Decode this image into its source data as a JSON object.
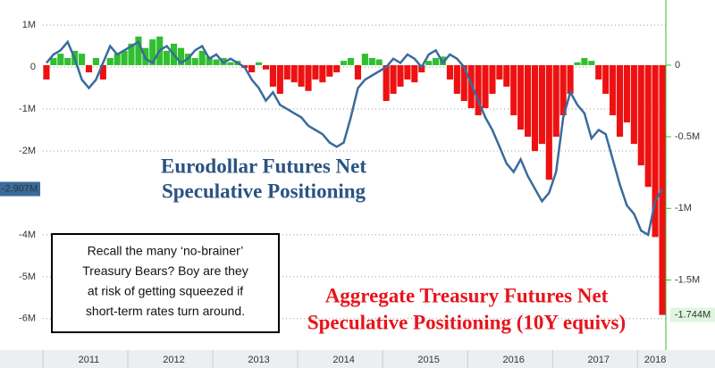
{
  "chart_data": {
    "type": "bar-line",
    "categories": [
      null,
      null,
      null,
      null,
      null,
      null,
      "2011",
      null,
      null,
      null,
      null,
      null,
      null,
      null,
      null,
      null,
      null,
      null,
      "2012",
      null,
      null,
      null,
      null,
      null,
      null,
      null,
      null,
      null,
      null,
      null,
      "2013",
      null,
      null,
      null,
      null,
      null,
      null,
      null,
      null,
      null,
      null,
      null,
      "2014",
      null,
      null,
      null,
      null,
      null,
      null,
      null,
      null,
      null,
      null,
      null,
      "2015",
      null,
      null,
      null,
      null,
      null,
      null,
      null,
      null,
      null,
      null,
      null,
      "2016",
      null,
      null,
      null,
      null,
      null,
      null,
      null,
      null,
      null,
      null,
      null,
      "2017",
      null,
      null,
      null,
      null,
      null,
      null,
      null,
      "2018",
      null
    ],
    "series": [
      {
        "name": "Aggregate Treasury Futures Net Speculative Positioning (10Y equivs)",
        "axis": "y2",
        "positive_color": "#2fbf2f",
        "negative_color": "#ee1111",
        "end_label": "-1.744M",
        "values": [
          -0.1,
          0.05,
          0.08,
          0.05,
          0.1,
          0.08,
          -0.05,
          0.05,
          -0.1,
          0.05,
          0.08,
          0.1,
          0.15,
          0.2,
          0.12,
          0.18,
          0.2,
          0.1,
          0.15,
          0.12,
          0.08,
          0.05,
          0.1,
          0.06,
          0.04,
          0.05,
          0.02,
          0.03,
          -0.02,
          -0.05,
          0.02,
          -0.03,
          -0.15,
          -0.2,
          -0.1,
          -0.12,
          -0.15,
          -0.18,
          -0.1,
          -0.12,
          -0.08,
          -0.05,
          0.03,
          0.05,
          -0.1,
          0.08,
          0.05,
          0.04,
          -0.25,
          -0.2,
          -0.15,
          -0.1,
          -0.12,
          -0.05,
          0.03,
          0.05,
          0.06,
          -0.1,
          -0.2,
          -0.25,
          -0.3,
          -0.35,
          -0.3,
          -0.2,
          -0.1,
          -0.15,
          -0.35,
          -0.45,
          -0.5,
          -0.6,
          -0.55,
          -0.8,
          -0.5,
          -0.35,
          -0.2,
          0.02,
          0.05,
          0.03,
          -0.1,
          -0.2,
          -0.35,
          -0.5,
          -0.4,
          -0.55,
          -0.7,
          -0.85,
          -1.2,
          -1.744
        ]
      },
      {
        "name": "Eurodollar Futures Net Speculative Positioning",
        "color": "#3a6b9c",
        "end_label": "-2.907M",
        "values": [
          0.1,
          0.3,
          0.4,
          0.6,
          0.2,
          -0.3,
          -0.5,
          -0.3,
          0.1,
          0.5,
          0.3,
          0.4,
          0.5,
          0.6,
          0.2,
          0.1,
          0.4,
          0.5,
          0.3,
          0.1,
          0.2,
          0.4,
          0.5,
          0.2,
          0.3,
          0.1,
          0.2,
          0.1,
          0.0,
          -0.3,
          -0.5,
          -0.8,
          -0.6,
          -0.9,
          -1.0,
          -1.1,
          -1.2,
          -1.4,
          -1.5,
          -1.6,
          -1.8,
          -1.9,
          -1.8,
          -1.2,
          -0.5,
          -0.3,
          -0.2,
          -0.1,
          0.0,
          0.2,
          0.1,
          0.3,
          0.2,
          0.0,
          0.3,
          0.4,
          0.1,
          0.3,
          0.2,
          0.0,
          -0.4,
          -0.8,
          -1.2,
          -1.5,
          -1.9,
          -2.3,
          -2.5,
          -2.2,
          -2.6,
          -2.9,
          -3.2,
          -3.0,
          -2.5,
          -1.2,
          -0.6,
          -0.9,
          -1.1,
          -1.7,
          -1.5,
          -1.6,
          -2.2,
          -2.8,
          -3.3,
          -3.5,
          -3.9,
          -4.0,
          -3.2,
          -2.907
        ]
      }
    ],
    "ylim": [
      -6.75,
      1.6
    ],
    "yticks": [
      {
        "value": 1,
        "label": "1M"
      },
      0,
      {
        "value": -1,
        "label": "-1M"
      },
      {
        "value": -2,
        "label": "-2M"
      },
      {
        "value": -4,
        "label": "-4M"
      },
      {
        "value": -5,
        "label": "-5M"
      },
      {
        "value": -6,
        "label": "-6M"
      }
    ],
    "y2lim": [
      -1.99,
      0.455
    ],
    "y2ticks": [
      0,
      {
        "value": -0.5,
        "label": "-0.5M"
      },
      {
        "value": -1,
        "label": "-1M"
      },
      {
        "value": -1.5,
        "label": "-1.5M"
      }
    ],
    "grid": true,
    "annotations": {
      "eurodollar": [
        "Eurodollar Futures Net",
        "Speculative Positioning"
      ],
      "treasury": [
        "Aggregate Treasury Futures Net",
        "Speculative Positioning (10Y equivs)"
      ],
      "note": [
        "Recall the many ‘no-brainer’",
        "Treasury Bears? Boy are they",
        "at risk of getting squeezed if",
        "short-term rates turn around."
      ]
    }
  }
}
